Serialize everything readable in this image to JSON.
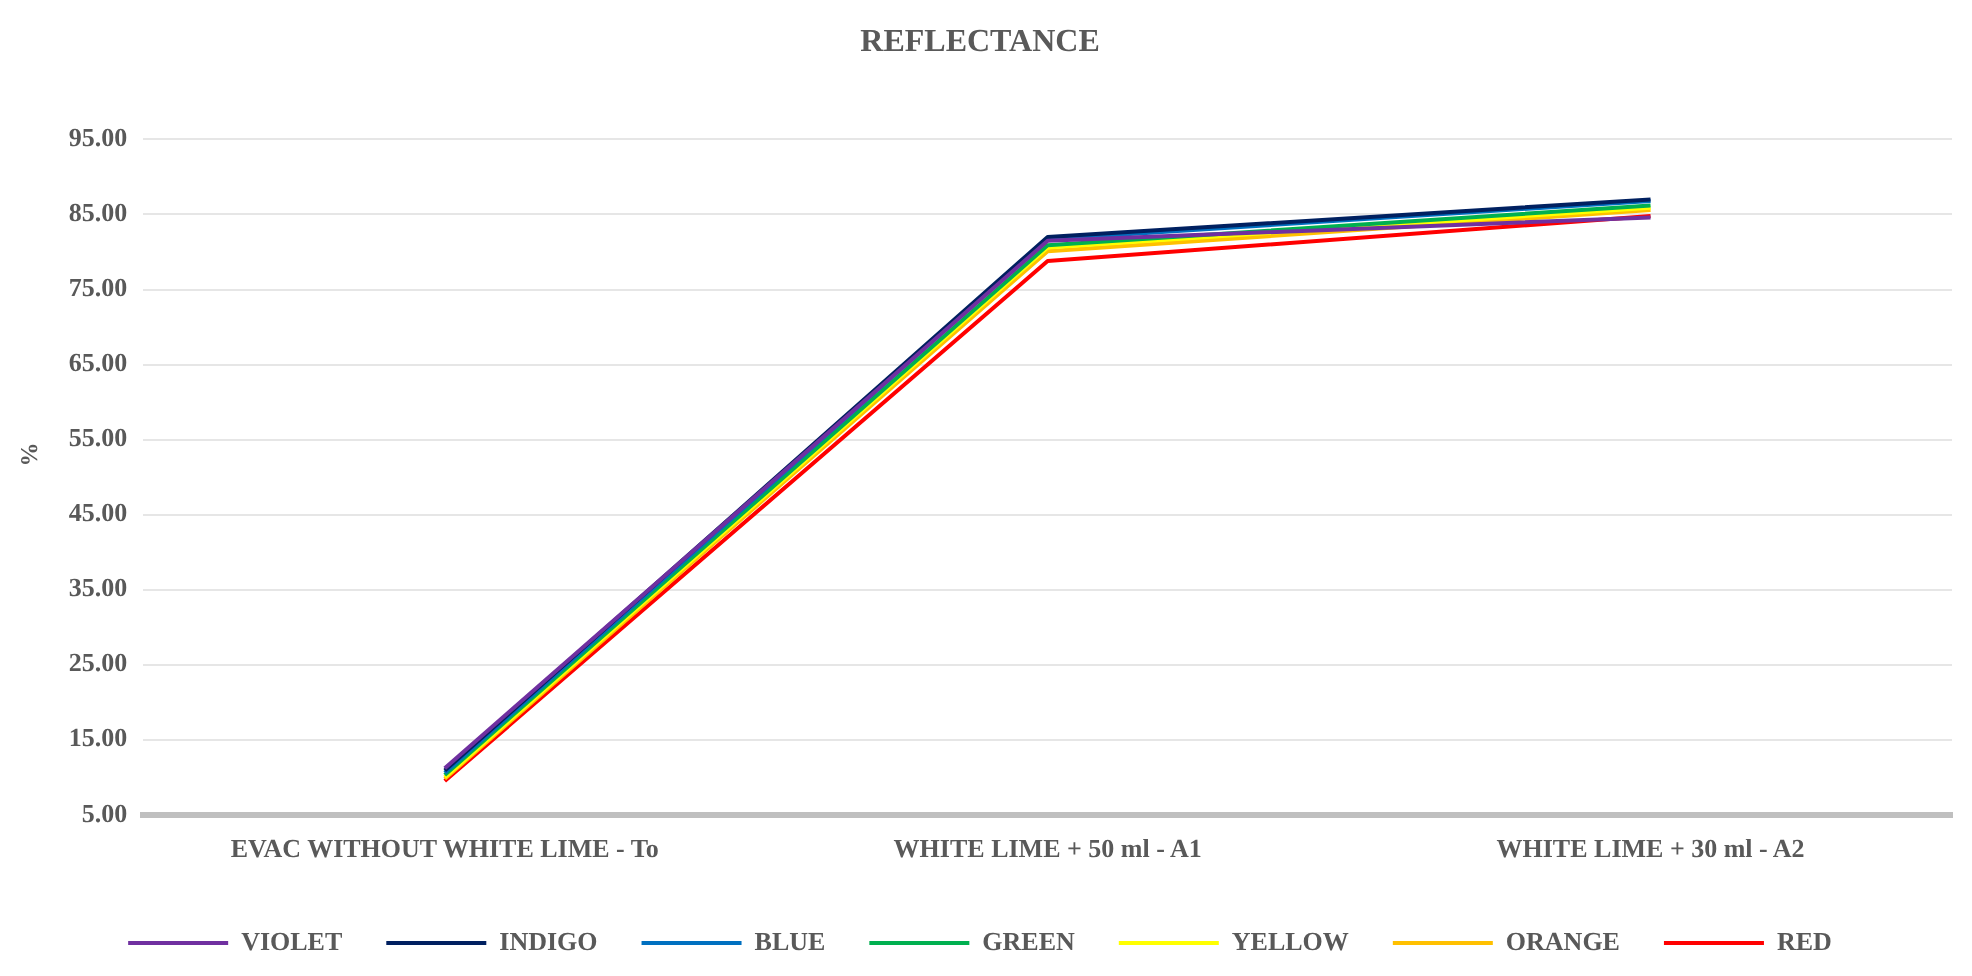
{
  "chart_data": {
    "type": "line",
    "title": "REFLECTANCE",
    "ylabel": "%",
    "categories": [
      "EVAC WITHOUT WHITE LIME - To",
      "WHITE LIME + 50 ml - A1",
      "WHITE LIME + 30 ml - A2"
    ],
    "series": [
      {
        "name": "VIOLET",
        "color": "#7030a0",
        "values": [
          11.2,
          81.5,
          84.6
        ]
      },
      {
        "name": "INDIGO",
        "color": "#002060",
        "values": [
          10.9,
          82.0,
          87.0
        ]
      },
      {
        "name": "BLUE",
        "color": "#0070c0",
        "values": [
          10.6,
          81.7,
          86.8
        ]
      },
      {
        "name": "GREEN",
        "color": "#00b050",
        "values": [
          10.3,
          80.9,
          86.2
        ]
      },
      {
        "name": "YELLOW",
        "color": "#ffff00",
        "values": [
          10.0,
          80.6,
          85.9
        ]
      },
      {
        "name": "ORANGE",
        "color": "#ffc000",
        "values": [
          9.8,
          80.1,
          85.6
        ]
      },
      {
        "name": "RED",
        "color": "#ff0000",
        "values": [
          9.5,
          78.8,
          84.8
        ]
      }
    ],
    "ylim": [
      5,
      95
    ],
    "yticks": [
      {
        "value": 5,
        "label": "5.00"
      },
      {
        "value": 15,
        "label": "15.00"
      },
      {
        "value": 25,
        "label": "25.00"
      },
      {
        "value": 35,
        "label": "35.00"
      },
      {
        "value": 45,
        "label": "45.00"
      },
      {
        "value": 55,
        "label": "55.00"
      },
      {
        "value": 65,
        "label": "65.00"
      },
      {
        "value": 75,
        "label": "75.00"
      },
      {
        "value": 85,
        "label": "85.00"
      },
      {
        "value": 95,
        "label": "95.00"
      }
    ],
    "grid": "y",
    "legend": "bottom",
    "marker": "none",
    "line_style": "solid"
  }
}
